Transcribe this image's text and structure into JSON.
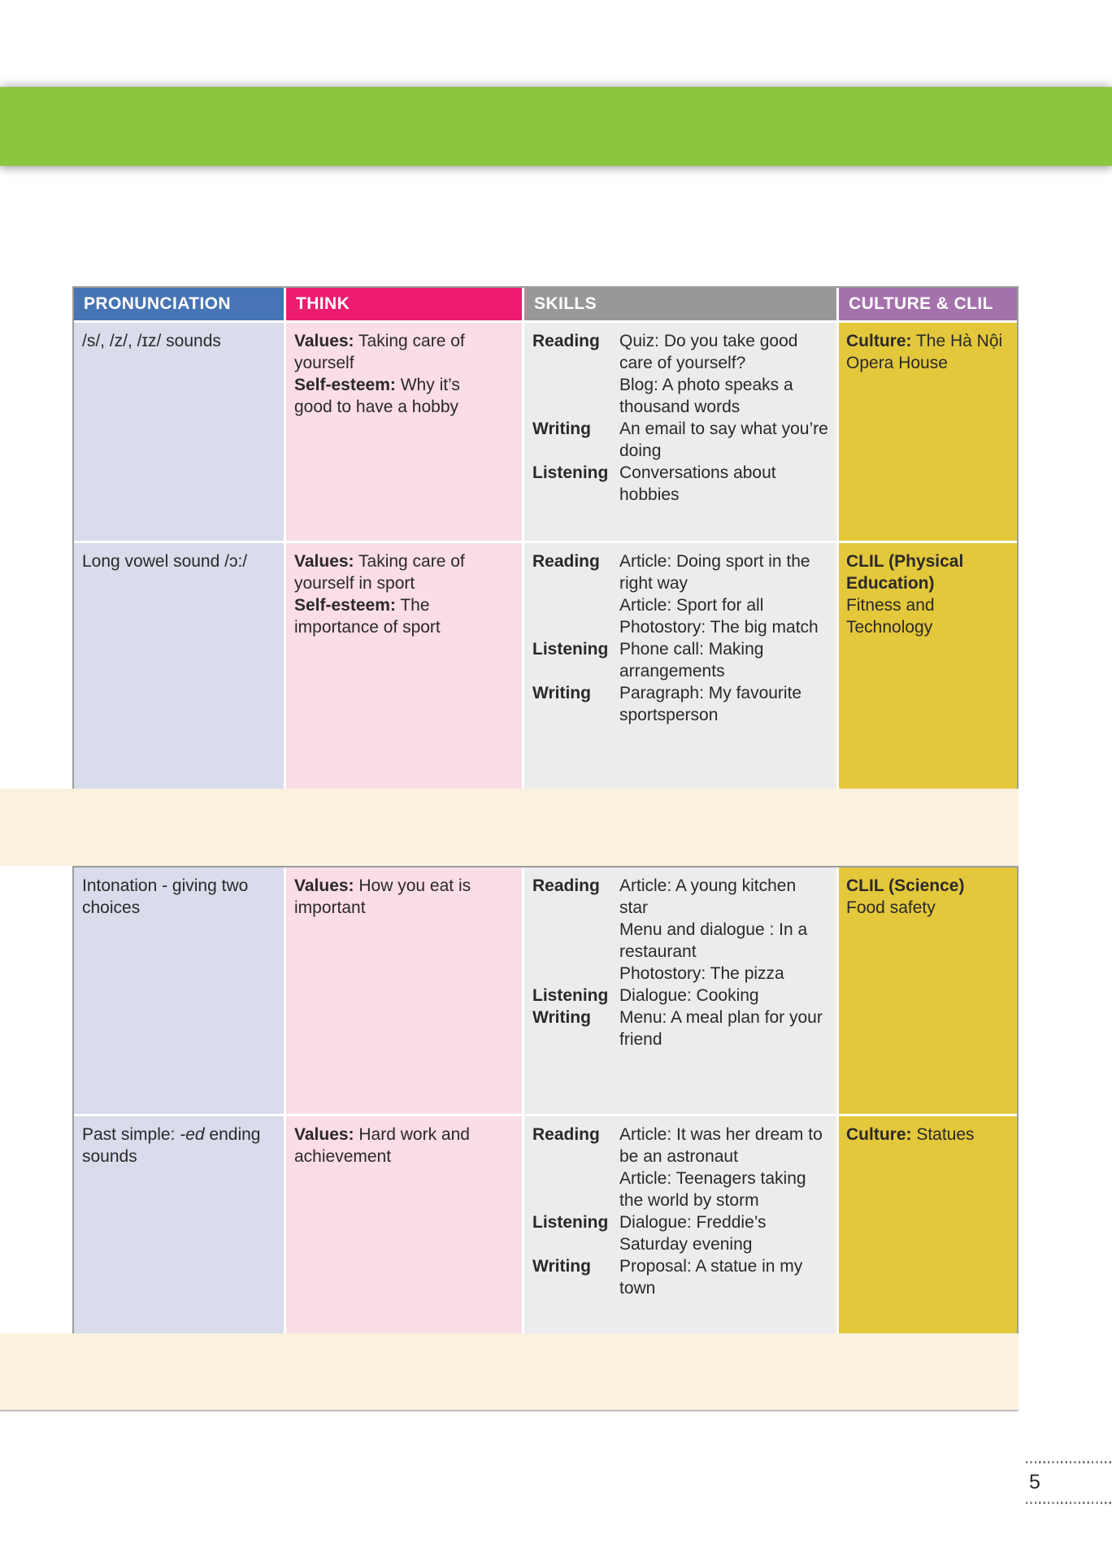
{
  "page": {
    "number": "5"
  },
  "colors": {
    "green_band": "#8CC63D",
    "header_pronunciation": "#4674B4",
    "header_think": "#ED1C70",
    "header_skills": "#97989A",
    "header_culture": "#A471AD",
    "cell_pronunciation": "#D8DCEB",
    "cell_think": "#FADDE6",
    "cell_skills": "#ECECEE",
    "cell_culture": "#E3C83B",
    "cream_band": "#FAF2DF"
  },
  "table": {
    "headers": [
      {
        "key": "pronunciation",
        "label": "PRONUNCIATION"
      },
      {
        "key": "think",
        "label": "THINK"
      },
      {
        "key": "skills",
        "label": "SKILLS"
      },
      {
        "key": "culture",
        "label": "CULTURE & CLIL"
      }
    ]
  },
  "units": [
    {
      "rows": [
        {
          "pronunciation": [
            {
              "text": "/s/, /z/, /ɪz/ sounds"
            }
          ],
          "think": [
            {
              "label": "Values:",
              "text": "Taking care of yourself"
            },
            {
              "label": "Self-esteem:",
              "text": "Why it’s good to have a hobby"
            }
          ],
          "skills": [
            {
              "label": "Reading",
              "items": [
                "Quiz: Do you take good care of yourself?",
                "Blog: A photo speaks a thousand words"
              ]
            },
            {
              "label": "Writing",
              "items": [
                "An email to say what you’re doing"
              ]
            },
            {
              "label": "Listening",
              "items": [
                "Conversations about hobbies"
              ]
            }
          ],
          "culture": [
            {
              "heading": "Culture:",
              "text": "The Hà Nội Opera House",
              "layout": "inline"
            }
          ]
        },
        {
          "pronunciation": [
            {
              "text": "Long vowel sound /ɔ:/"
            }
          ],
          "think": [
            {
              "label": "Values:",
              "text": "Taking care of yourself in sport"
            },
            {
              "label": "Self-esteem:",
              "text": "The importance of sport"
            }
          ],
          "skills": [
            {
              "label": "Reading",
              "items": [
                "Article: Doing sport in the right way",
                "Article: Sport for all",
                "Photostory: The big match"
              ]
            },
            {
              "label": "Listening",
              "items": [
                "Phone call: Making arrangements"
              ]
            },
            {
              "label": "Writing",
              "items": [
                "Paragraph: My favourite sportsperson"
              ]
            }
          ],
          "culture": [
            {
              "heading": "CLIL (Physical Education)",
              "text": "Fitness and Technology",
              "layout": "block"
            }
          ]
        }
      ]
    },
    {
      "rows": [
        {
          "pronunciation": [
            {
              "text": "Intonation - giving two choices"
            }
          ],
          "think": [
            {
              "label": "Values:",
              "text": "How you eat is important"
            }
          ],
          "skills": [
            {
              "label": "Reading",
              "items": [
                "Article: A young kitchen star",
                "Menu and dialogue : In a restaurant",
                "Photostory: The pizza"
              ]
            },
            {
              "label": "Listening",
              "items": [
                "Dialogue: Cooking"
              ]
            },
            {
              "label": "Writing",
              "items": [
                "Menu: A meal plan for your friend"
              ]
            }
          ],
          "culture": [
            {
              "heading": "CLIL (Science)",
              "text": "Food safety",
              "layout": "block"
            }
          ]
        },
        {
          "pronunciation": [
            {
              "text": "Past simple: "
            },
            {
              "text": "-ed",
              "italic": true
            },
            {
              "text": " ending sounds"
            }
          ],
          "think": [
            {
              "label": "Values:",
              "text": "Hard work and achievement"
            }
          ],
          "skills": [
            {
              "label": "Reading",
              "items": [
                "Article: It was her dream to be an astronaut",
                "Article: Teenagers taking the world by storm"
              ]
            },
            {
              "label": "Listening",
              "items": [
                "Dialogue: Freddie’s Saturday evening"
              ]
            },
            {
              "label": "Writing",
              "items": [
                "Proposal: A statue in my town"
              ]
            }
          ],
          "culture": [
            {
              "heading": "Culture:",
              "text": "Statues",
              "layout": "inline"
            }
          ]
        }
      ]
    }
  ]
}
